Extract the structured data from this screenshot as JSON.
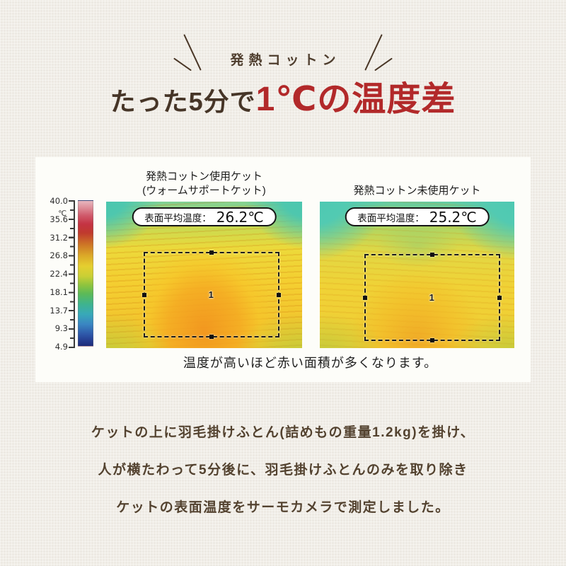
{
  "colors": {
    "background": "#f1eee8",
    "panel": "#fdfdf9",
    "accent_red": "#b2292a",
    "text_brown": "#53422f",
    "thermal_teal": "#4cc8b2",
    "thermal_orange": "#f2941e"
  },
  "header": {
    "eyebrow": "発熱コットン",
    "title_normal": "たった5分で",
    "title_accent": "1℃の温度差"
  },
  "comparison": {
    "left": {
      "label_line1": "発熱コットン使用ケット",
      "label_line2": "(ウォームサポートケット)",
      "pill_label": "表面平均温度：",
      "pill_value": "26.2℃",
      "region_marker": "1"
    },
    "right": {
      "label_line1": "発熱コットン未使用ケット",
      "pill_label": "表面平均温度：",
      "pill_value": "25.2℃",
      "region_marker": "1"
    },
    "scale": {
      "unit": "℃",
      "ticks": [
        "40.0",
        "35.6",
        "31.2",
        "26.8",
        "22.4",
        "18.1",
        "13.7",
        "9.3",
        "4.9"
      ]
    },
    "caption": "温度が高いほど赤い面積が多くなります。"
  },
  "description": {
    "lines": [
      "ケットの上に羽毛掛けふとん(詰めもの重量1.2kg)を掛け、",
      "人が横たわって5分後に、羽毛掛けふとんのみを取り除き",
      "ケットの表面温度をサーモカメラで測定しました。"
    ]
  }
}
